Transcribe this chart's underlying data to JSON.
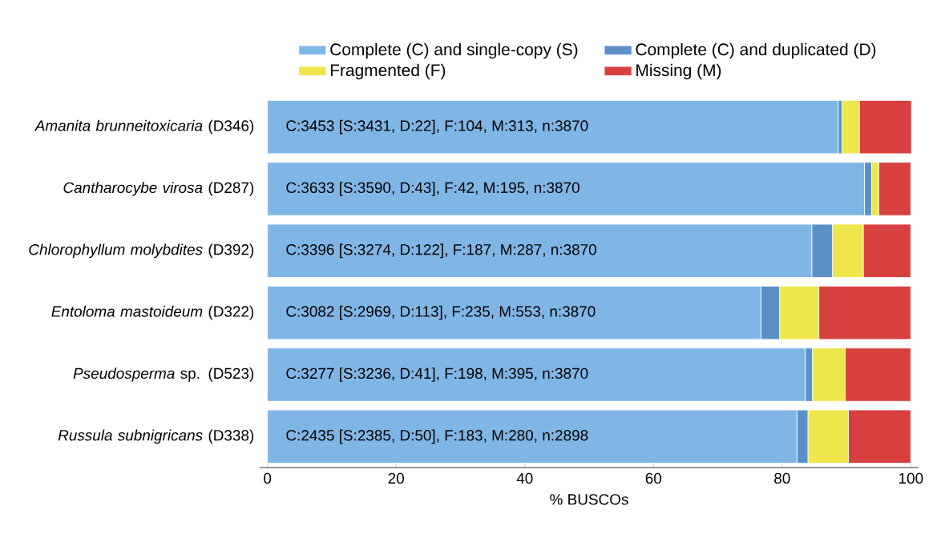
{
  "chart_data": {
    "type": "bar",
    "orientation": "horizontal",
    "stacked": true,
    "xlabel": "% BUSCOs",
    "legend": "top",
    "categories": [
      "*Amanita brunneitoxicaria* (D346)",
      "*Cantharocybe virosa* (D287)",
      "*Chlorophyllum molybdites* (D392)",
      "*Entoloma mastoideum* (D322)",
      "*Pseudosperma* sp. (D523)",
      "*Russula subnigricans* (D338)"
    ],
    "series": [
      {
        "name": "Complete (C) and single-copy (S)",
        "color": "#80b6e6",
        "values": [
          88.7,
          92.8,
          84.6,
          76.7,
          83.6,
          82.3
        ]
      },
      {
        "name": "Complete (C) and duplicated (D)",
        "color": "#5b8fc8",
        "values": [
          0.6,
          1.1,
          3.2,
          2.9,
          1.1,
          1.7
        ]
      },
      {
        "name": "Fragmented (F)",
        "color": "#eee64a",
        "values": [
          2.7,
          1.1,
          4.8,
          6.1,
          5.1,
          6.3
        ]
      },
      {
        "name": "Missing (M)",
        "color": "#d83f3f",
        "values": [
          8.1,
          5.0,
          7.4,
          14.3,
          10.2,
          9.7
        ]
      }
    ],
    "xlim": [
      0,
      100
    ],
    "xticks": [
      0,
      20,
      40,
      60,
      80,
      100
    ],
    "annotations": [
      "C:3453 [S:3431, D:22], F:104, M:313, n:3870",
      "C:3633 [S:3590, D:43], F:42, M:195, n:3870",
      "C:3396 [S:3274, D:122], F:187, M:287, n:3870",
      "C:3082 [S:2969, D:113], F:235, M:553, n:3870",
      "C:3277 [S:3236, D:41], F:198, M:395, n:3870",
      "C:2435 [S:2385, D:50], F:183, M:280, n:2898"
    ]
  }
}
